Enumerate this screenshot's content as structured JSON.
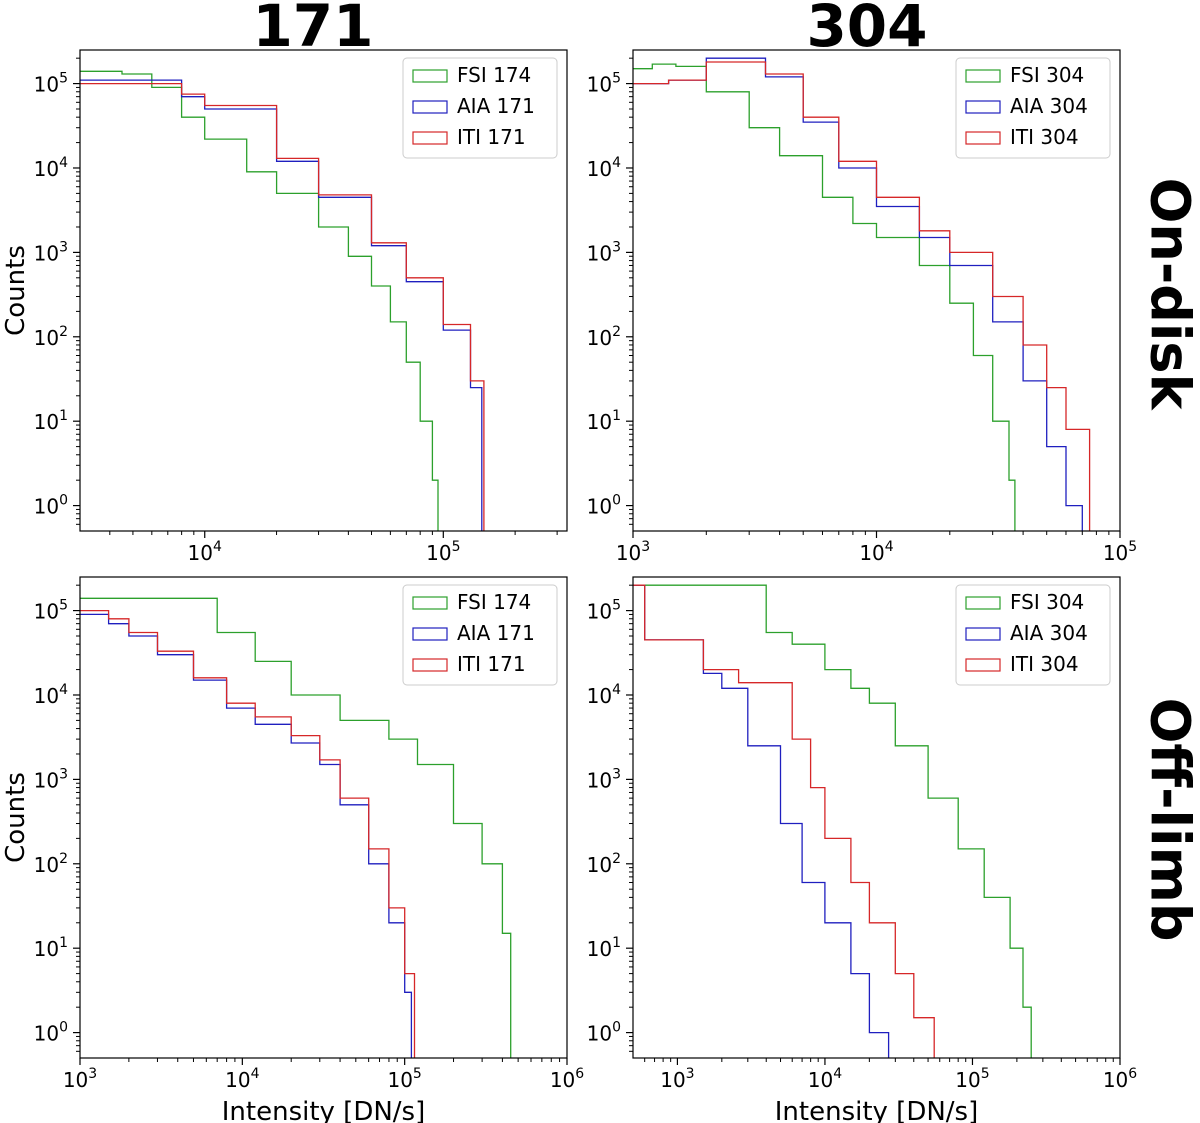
{
  "column_titles": [
    "171",
    "304"
  ],
  "row_titles": [
    "On-disk",
    "Off-limb"
  ],
  "colors": {
    "FSI": "#2ca02c",
    "AIA": "#1f1fbf",
    "ITI": "#d62728"
  },
  "chart_data": [
    {
      "type": "line",
      "panel": "171 On-disk",
      "xscale": "log",
      "yscale": "log",
      "xlim": [
        3000,
        330000
      ],
      "ylim": [
        0.5,
        250000
      ],
      "xticks": [
        10000,
        100000
      ],
      "xtick_labels": [
        "10^4",
        "10^5"
      ],
      "yticks": [
        1,
        10,
        100,
        1000,
        10000,
        100000
      ],
      "ytick_labels": [
        "10^0",
        "10^1",
        "10^2",
        "10^3",
        "10^4",
        "10^5"
      ],
      "xlabel": "",
      "ylabel": "Counts",
      "legend_position": "top-right",
      "series": [
        {
          "name": "FSI 174",
          "color": "#2ca02c",
          "x": [
            3000,
            4500,
            6000,
            8000,
            10000,
            15000,
            20000,
            30000,
            40000,
            50000,
            60000,
            70000,
            80000,
            90000,
            95000
          ],
          "y": [
            140000,
            130000,
            90000,
            40000,
            22000,
            9000,
            5000,
            2000,
            900,
            400,
            150,
            50,
            10,
            2,
            0.5
          ]
        },
        {
          "name": "AIA 171",
          "color": "#1f1fbf",
          "x": [
            3000,
            5000,
            8000,
            10000,
            20000,
            30000,
            50000,
            70000,
            100000,
            130000,
            145000
          ],
          "y": [
            110000,
            110000,
            70000,
            50000,
            12000,
            4500,
            1200,
            450,
            120,
            25,
            0.5
          ]
        },
        {
          "name": "ITI 171",
          "color": "#d62728",
          "x": [
            3000,
            5000,
            8000,
            10000,
            20000,
            30000,
            50000,
            70000,
            100000,
            130000,
            148000
          ],
          "y": [
            100000,
            100000,
            75000,
            55000,
            13000,
            4800,
            1300,
            500,
            140,
            30,
            0.5
          ]
        }
      ]
    },
    {
      "type": "line",
      "panel": "304 On-disk",
      "xscale": "log",
      "yscale": "log",
      "xlim": [
        1000,
        100000
      ],
      "ylim": [
        0.5,
        250000
      ],
      "xticks": [
        1000,
        10000,
        100000
      ],
      "xtick_labels": [
        "10^3",
        "10^4",
        "10^5"
      ],
      "yticks": [
        1,
        10,
        100,
        1000,
        10000,
        100000
      ],
      "ytick_labels": [
        "10^0",
        "10^1",
        "10^2",
        "10^3",
        "10^4",
        "10^5"
      ],
      "xlabel": "",
      "ylabel": "",
      "legend_position": "top-right",
      "series": [
        {
          "name": "FSI 304",
          "color": "#2ca02c",
          "x": [
            1000,
            1200,
            1500,
            2000,
            3000,
            4000,
            6000,
            8000,
            10000,
            15000,
            20000,
            25000,
            30000,
            35000,
            37000
          ],
          "y": [
            150000,
            170000,
            160000,
            80000,
            30000,
            14000,
            4500,
            2200,
            1500,
            700,
            250,
            60,
            10,
            2,
            0.5
          ]
        },
        {
          "name": "AIA 304",
          "color": "#1f1fbf",
          "x": [
            1000,
            1400,
            2000,
            2800,
            3500,
            5000,
            7000,
            10000,
            15000,
            20000,
            30000,
            40000,
            50000,
            60000,
            70000
          ],
          "y": [
            100000,
            110000,
            200000,
            200000,
            120000,
            35000,
            10000,
            3500,
            1500,
            700,
            150,
            30,
            5,
            1,
            0.5
          ]
        },
        {
          "name": "ITI 304",
          "color": "#d62728",
          "x": [
            1000,
            1400,
            2000,
            2800,
            3500,
            5000,
            7000,
            10000,
            15000,
            20000,
            30000,
            40000,
            50000,
            60000,
            75000
          ],
          "y": [
            100000,
            110000,
            180000,
            180000,
            130000,
            40000,
            12000,
            4500,
            1800,
            1000,
            300,
            80,
            25,
            8,
            0.5
          ]
        }
      ]
    },
    {
      "type": "line",
      "panel": "171 Off-limb",
      "xscale": "log",
      "yscale": "log",
      "xlim": [
        1000,
        1000000
      ],
      "ylim": [
        0.5,
        250000
      ],
      "xticks": [
        1000,
        10000,
        100000,
        1000000
      ],
      "xtick_labels": [
        "10^3",
        "10^4",
        "10^5",
        "10^6"
      ],
      "yticks": [
        1,
        10,
        100,
        1000,
        10000,
        100000
      ],
      "ytick_labels": [
        "10^0",
        "10^1",
        "10^2",
        "10^3",
        "10^4",
        "10^5"
      ],
      "xlabel": "Intensity [DN/s]",
      "ylabel": "Counts",
      "legend_position": "top-right",
      "series": [
        {
          "name": "FSI 174",
          "color": "#2ca02c",
          "x": [
            1000,
            4500,
            7000,
            12000,
            20000,
            40000,
            80000,
            120000,
            200000,
            300000,
            400000,
            450000
          ],
          "y": [
            140000,
            140000,
            55000,
            25000,
            10000,
            5000,
            3000,
            1500,
            300,
            100,
            15,
            0.5
          ]
        },
        {
          "name": "AIA 171",
          "color": "#1f1fbf",
          "x": [
            1000,
            1500,
            2000,
            3000,
            5000,
            8000,
            12000,
            20000,
            30000,
            40000,
            60000,
            80000,
            100000,
            110000
          ],
          "y": [
            90000,
            70000,
            50000,
            30000,
            15000,
            7000,
            4500,
            2700,
            1500,
            500,
            100,
            20,
            3,
            0.5
          ]
        },
        {
          "name": "ITI 171",
          "color": "#d62728",
          "x": [
            1000,
            1500,
            2000,
            3000,
            5000,
            8000,
            12000,
            20000,
            30000,
            40000,
            60000,
            80000,
            100000,
            115000
          ],
          "y": [
            100000,
            80000,
            55000,
            33000,
            16000,
            8000,
            5500,
            3300,
            1700,
            600,
            150,
            30,
            5,
            0.5
          ]
        }
      ]
    },
    {
      "type": "line",
      "panel": "304 Off-limb",
      "xscale": "log",
      "yscale": "log",
      "xlim": [
        500,
        1000000
      ],
      "ylim": [
        0.5,
        250000
      ],
      "xticks": [
        1000,
        10000,
        100000,
        1000000
      ],
      "xtick_labels": [
        "10^3",
        "10^4",
        "10^5",
        "10^6"
      ],
      "yticks": [
        1,
        10,
        100,
        1000,
        10000,
        100000
      ],
      "ytick_labels": [
        "10^0",
        "10^1",
        "10^2",
        "10^3",
        "10^4",
        "10^5"
      ],
      "xlabel": "Intensity [DN/s]",
      "ylabel": "",
      "legend_position": "top-right",
      "series": [
        {
          "name": "FSI 304",
          "color": "#2ca02c",
          "x": [
            500,
            2600,
            4000,
            6000,
            10000,
            15000,
            20000,
            30000,
            50000,
            80000,
            120000,
            180000,
            220000,
            250000
          ],
          "y": [
            200000,
            200000,
            55000,
            40000,
            20000,
            12000,
            8000,
            2500,
            600,
            150,
            40,
            10,
            2,
            0.5
          ]
        },
        {
          "name": "AIA 304",
          "color": "#1f1fbf",
          "x": [
            500,
            600,
            1000,
            1500,
            2000,
            3000,
            5000,
            7000,
            10000,
            15000,
            20000,
            27000
          ],
          "y": [
            200000,
            45000,
            45000,
            18000,
            12000,
            2500,
            300,
            60,
            20,
            5,
            1,
            0.5
          ]
        },
        {
          "name": "ITI 304",
          "color": "#d62728",
          "x": [
            500,
            600,
            1000,
            1500,
            2600,
            4000,
            6000,
            8000,
            10000,
            15000,
            20000,
            30000,
            40000,
            55000
          ],
          "y": [
            200000,
            45000,
            45000,
            20000,
            14000,
            14000,
            3000,
            800,
            200,
            60,
            20,
            5,
            1.5,
            0.5
          ]
        }
      ]
    }
  ]
}
